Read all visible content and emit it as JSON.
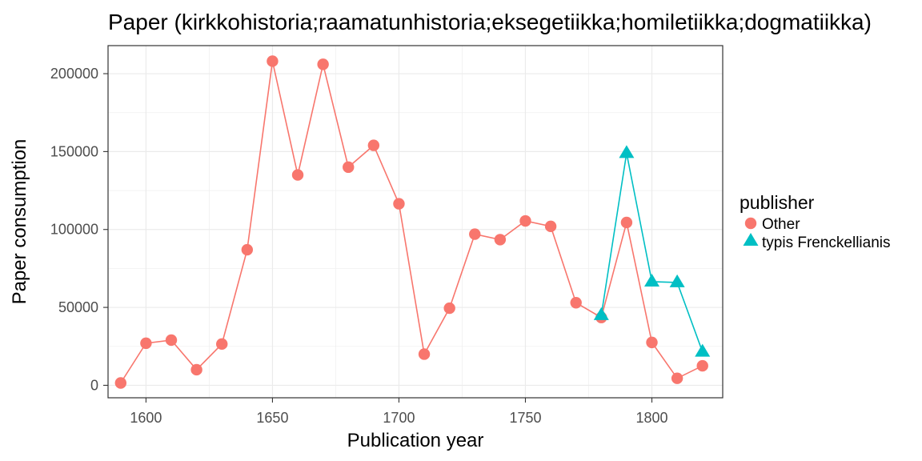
{
  "chart_data": {
    "type": "line",
    "title": "Paper (kirkkohistoria;raamatunhistoria;eksegetiikka;homiletiikka;dogmatiikka)",
    "xlabel": "Publication year",
    "ylabel": "Paper consumption",
    "xlim": [
      1585,
      1828
    ],
    "ylim": [
      -8000,
      218000
    ],
    "x_ticks": [
      1600,
      1650,
      1700,
      1750,
      1800
    ],
    "x_tick_labels": [
      "1600",
      "1650",
      "1700",
      "1750",
      "1800"
    ],
    "y_ticks": [
      0,
      50000,
      100000,
      150000,
      200000
    ],
    "y_tick_labels": [
      "0",
      "50000",
      "100000",
      "150000",
      "200000"
    ],
    "grid": true,
    "legend": {
      "title": "publisher",
      "position": "right"
    },
    "series": [
      {
        "name": "Other",
        "color": "#F8766D",
        "marker": "circle",
        "x": [
          1590,
          1600,
          1610,
          1620,
          1630,
          1640,
          1650,
          1660,
          1670,
          1680,
          1690,
          1700,
          1710,
          1720,
          1730,
          1740,
          1750,
          1760,
          1770,
          1780,
          1790,
          1800,
          1810,
          1820
        ],
        "y": [
          1500,
          27000,
          29000,
          10000,
          26500,
          87000,
          208000,
          135000,
          206000,
          140000,
          154000,
          116500,
          20000,
          49500,
          97000,
          93500,
          105500,
          102000,
          53000,
          43500,
          104500,
          27500,
          4500,
          12500
        ]
      },
      {
        "name": "typis Frenckellianis",
        "color": "#00BFC4",
        "marker": "triangle",
        "x": [
          1780,
          1790,
          1800,
          1810,
          1820
        ],
        "y": [
          45000,
          149000,
          66500,
          66000,
          21500
        ]
      }
    ]
  }
}
